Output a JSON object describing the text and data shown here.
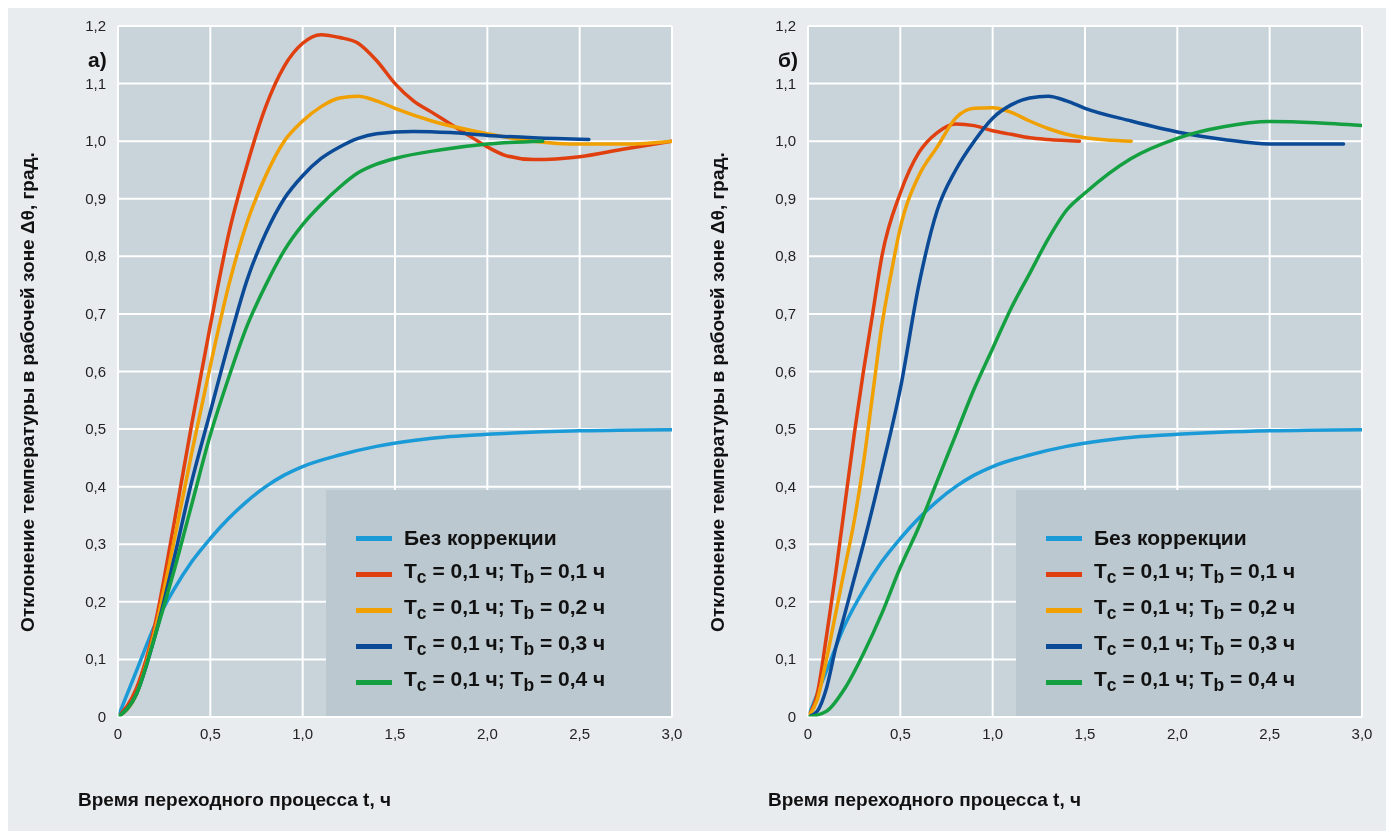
{
  "chart_data": [
    {
      "type": "line",
      "title": "а)",
      "xlabel": "Время переходного процесса t, ч",
      "ylabel": "Отклонение температуры в рабочей зоне Δθ, град.",
      "xlim": [
        0,
        3
      ],
      "ylim": [
        0,
        1.2
      ],
      "xticks": [
        0,
        {
          "value": 0.5,
          "label": "0,5"
        },
        {
          "value": 1,
          "label": "1,0"
        },
        {
          "value": 1.5,
          "label": "1,5"
        },
        {
          "value": 2,
          "label": "2,0"
        },
        {
          "value": 2.5,
          "label": "2,5"
        },
        {
          "value": 3,
          "label": "3,0"
        }
      ],
      "yticks": [
        0,
        {
          "value": 0.1,
          "label": "0,1"
        },
        {
          "value": 0.2,
          "label": "0,2"
        },
        {
          "value": 0.3,
          "label": "0,3"
        },
        {
          "value": 0.4,
          "label": "0,4"
        },
        {
          "value": 0.5,
          "label": "0,5"
        },
        {
          "value": 0.6,
          "label": "0,6"
        },
        {
          "value": 0.7,
          "label": "0,7"
        },
        {
          "value": 0.8,
          "label": "0,8"
        },
        {
          "value": 0.9,
          "label": "0,9"
        },
        {
          "value": 1,
          "label": "1,0"
        },
        {
          "value": 1.1,
          "label": "1,1"
        },
        {
          "value": 1.2,
          "label": "1,2"
        }
      ],
      "grid": true,
      "legend": "bottom right",
      "series": [
        {
          "name": "Без коррекции",
          "color": "#1a9ad6",
          "x": [
            0,
            0.1,
            0.2,
            0.3,
            0.4,
            0.5,
            0.6,
            0.7,
            0.8,
            0.9,
            1.0,
            1.2,
            1.4,
            1.6,
            1.8,
            2.0,
            2.5,
            3.0
          ],
          "values": [
            0,
            0.08,
            0.16,
            0.22,
            0.27,
            0.31,
            0.345,
            0.375,
            0.4,
            0.42,
            0.435,
            0.455,
            0.47,
            0.48,
            0.487,
            0.491,
            0.497,
            0.499
          ]
        },
        {
          "name": "T$_{c}$ = 0,1 ч; T$_{b}$ = 0,1 ч",
          "color": "#e04010",
          "x": [
            0,
            0.1,
            0.2,
            0.3,
            0.4,
            0.5,
            0.6,
            0.7,
            0.8,
            0.9,
            1.0,
            1.1,
            1.2,
            1.3,
            1.4,
            1.5,
            1.6,
            1.7,
            1.8,
            1.9,
            2.0,
            2.1,
            2.25,
            2.5,
            2.75,
            3.0
          ],
          "values": [
            0,
            0.05,
            0.16,
            0.33,
            0.51,
            0.68,
            0.84,
            0.96,
            1.06,
            1.13,
            1.17,
            1.185,
            1.18,
            1.17,
            1.14,
            1.1,
            1.07,
            1.05,
            1.03,
            1.01,
            0.99,
            0.975,
            0.968,
            0.973,
            0.987,
            1.0
          ]
        },
        {
          "name": "T$_{c}$ = 0,1 ч; T$_{b}$ = 0,2 ч",
          "color": "#f0a000",
          "x": [
            0,
            0.1,
            0.2,
            0.3,
            0.4,
            0.5,
            0.6,
            0.7,
            0.8,
            0.9,
            1.0,
            1.1,
            1.2,
            1.3,
            1.4,
            1.5,
            1.7,
            2.0,
            2.25,
            2.5,
            2.75,
            3.0
          ],
          "values": [
            0,
            0.04,
            0.15,
            0.3,
            0.46,
            0.61,
            0.75,
            0.86,
            0.94,
            1.0,
            1.035,
            1.06,
            1.075,
            1.078,
            1.07,
            1.057,
            1.035,
            1.013,
            1.0,
            0.995,
            0.995,
            1.0
          ]
        },
        {
          "name": "T$_{c}$ = 0,1 ч; T$_{b}$ = 0,3 ч",
          "color": "#0a4a96",
          "x": [
            0,
            0.1,
            0.2,
            0.3,
            0.4,
            0.5,
            0.6,
            0.7,
            0.8,
            0.9,
            1.0,
            1.1,
            1.2,
            1.3,
            1.4,
            1.6,
            1.8,
            2.0,
            2.25,
            2.55
          ],
          "values": [
            0,
            0.04,
            0.14,
            0.27,
            0.41,
            0.53,
            0.65,
            0.76,
            0.84,
            0.9,
            0.94,
            0.97,
            0.99,
            1.005,
            1.013,
            1.017,
            1.015,
            1.01,
            1.006,
            1.003
          ]
        },
        {
          "name": "T$_{c}$ = 0,1 ч; T$_{b}$ = 0,4 ч",
          "color": "#14a040",
          "x": [
            0,
            0.1,
            0.2,
            0.3,
            0.4,
            0.5,
            0.6,
            0.7,
            0.8,
            0.9,
            1.0,
            1.1,
            1.2,
            1.3,
            1.4,
            1.5,
            1.75,
            2.0,
            2.3
          ],
          "values": [
            0,
            0.04,
            0.14,
            0.25,
            0.37,
            0.49,
            0.59,
            0.68,
            0.75,
            0.81,
            0.855,
            0.89,
            0.92,
            0.945,
            0.96,
            0.97,
            0.985,
            0.995,
            1.0
          ]
        }
      ]
    },
    {
      "type": "line",
      "title": "б)",
      "xlabel": "Время переходного процесса t, ч",
      "ylabel": "Отклонение температуры в рабочей зоне Δθ, град.",
      "xlim": [
        0,
        3
      ],
      "ylim": [
        0,
        1.2
      ],
      "xticks": [
        0,
        {
          "value": 0.5,
          "label": "0,5"
        },
        {
          "value": 1,
          "label": "1,0"
        },
        {
          "value": 1.5,
          "label": "1,5"
        },
        {
          "value": 2,
          "label": "2,0"
        },
        {
          "value": 2.5,
          "label": "2,5"
        },
        {
          "value": 3,
          "label": "3,0"
        }
      ],
      "yticks": [
        0,
        {
          "value": 0.1,
          "label": "0,1"
        },
        {
          "value": 0.2,
          "label": "0,2"
        },
        {
          "value": 0.3,
          "label": "0,3"
        },
        {
          "value": 0.4,
          "label": "0,4"
        },
        {
          "value": 0.5,
          "label": "0,5"
        },
        {
          "value": 0.6,
          "label": "0,6"
        },
        {
          "value": 0.7,
          "label": "0,7"
        },
        {
          "value": 0.8,
          "label": "0,8"
        },
        {
          "value": 0.9,
          "label": "0,9"
        },
        {
          "value": 1,
          "label": "1,0"
        },
        {
          "value": 1.1,
          "label": "1,1"
        },
        {
          "value": 1.2,
          "label": "1,2"
        }
      ],
      "grid": true,
      "legend": "bottom right",
      "series": [
        {
          "name": "Без коррекции",
          "color": "#1a9ad6",
          "x": [
            0,
            0.1,
            0.2,
            0.3,
            0.4,
            0.5,
            0.6,
            0.7,
            0.8,
            0.9,
            1.0,
            1.2,
            1.4,
            1.6,
            1.8,
            2.0,
            2.5,
            3.0
          ],
          "values": [
            0,
            0.08,
            0.16,
            0.22,
            0.27,
            0.31,
            0.345,
            0.375,
            0.4,
            0.42,
            0.435,
            0.455,
            0.47,
            0.48,
            0.487,
            0.491,
            0.497,
            0.499
          ]
        },
        {
          "name": "T$_{c}$ = 0,1 ч; T$_{b}$ = 0,1 ч",
          "color": "#e04010",
          "x": [
            0,
            0.05,
            0.1,
            0.15,
            0.2,
            0.25,
            0.3,
            0.35,
            0.4,
            0.5,
            0.6,
            0.7,
            0.8,
            0.9,
            1.0,
            1.1,
            1.2,
            1.3,
            1.47
          ],
          "values": [
            0,
            0.04,
            0.14,
            0.25,
            0.37,
            0.49,
            0.6,
            0.7,
            0.8,
            0.91,
            0.98,
            1.015,
            1.03,
            1.027,
            1.018,
            1.012,
            1.006,
            1.003,
            1.0
          ]
        },
        {
          "name": "T$_{c}$ = 0,1 ч; T$_{b}$ = 0,2 ч",
          "color": "#f0a000",
          "x": [
            0,
            0.05,
            0.1,
            0.15,
            0.2,
            0.25,
            0.3,
            0.35,
            0.4,
            0.45,
            0.5,
            0.6,
            0.7,
            0.8,
            0.9,
            1.0,
            1.1,
            1.2,
            1.3,
            1.4,
            1.5,
            1.75
          ],
          "values": [
            0,
            0.03,
            0.1,
            0.18,
            0.26,
            0.34,
            0.44,
            0.56,
            0.68,
            0.77,
            0.85,
            0.94,
            0.99,
            1.04,
            1.057,
            1.058,
            1.05,
            1.035,
            1.022,
            1.012,
            1.006,
            1.0
          ]
        },
        {
          "name": "T$_{c}$ = 0,1 ч; T$_{b}$ = 0,3 ч",
          "color": "#0a4a96",
          "x": [
            0,
            0.05,
            0.1,
            0.15,
            0.2,
            0.25,
            0.3,
            0.4,
            0.5,
            0.6,
            0.7,
            0.8,
            0.9,
            1.0,
            1.1,
            1.2,
            1.3,
            1.4,
            1.5,
            1.75,
            2.0,
            2.25,
            2.5,
            2.75,
            2.9
          ],
          "values": [
            0,
            0.01,
            0.05,
            0.12,
            0.18,
            0.24,
            0.3,
            0.43,
            0.57,
            0.75,
            0.88,
            0.95,
            1.0,
            1.04,
            1.063,
            1.075,
            1.078,
            1.07,
            1.057,
            1.035,
            1.016,
            1.003,
            0.995,
            0.995,
            0.995
          ]
        },
        {
          "name": "T$_{c}$ = 0,1 ч; T$_{b}$ = 0,4 ч",
          "color": "#14a040",
          "x": [
            0,
            0.1,
            0.2,
            0.3,
            0.4,
            0.5,
            0.6,
            0.7,
            0.8,
            0.9,
            1.0,
            1.1,
            1.2,
            1.3,
            1.4,
            1.5,
            1.75,
            2.0,
            2.25,
            2.5,
            2.75,
            3.0
          ],
          "values": [
            0,
            0.01,
            0.05,
            0.11,
            0.18,
            0.26,
            0.33,
            0.41,
            0.49,
            0.57,
            0.64,
            0.71,
            0.77,
            0.83,
            0.88,
            0.91,
            0.97,
            1.005,
            1.025,
            1.034,
            1.032,
            1.027
          ]
        }
      ]
    }
  ]
}
